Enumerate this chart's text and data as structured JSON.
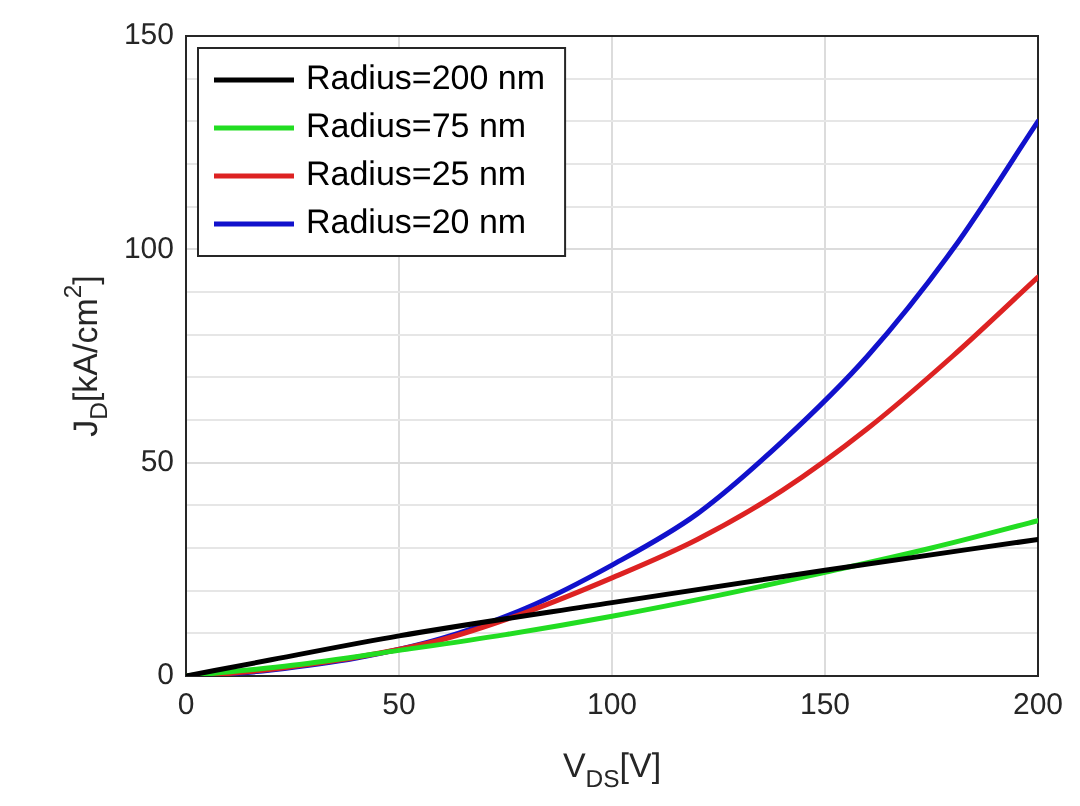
{
  "chart_data": {
    "type": "line",
    "xlabel": "V$_{DS}$[V]",
    "ylabel": "J$_{D}$[kA/cm$^{2}$]",
    "xlim": [
      0,
      200
    ],
    "xticks": [
      0,
      50,
      100,
      150,
      200
    ],
    "ylim": [
      0,
      150
    ],
    "yticks": [
      0,
      {
        "value": 10,
        "label": null
      },
      {
        "value": 20,
        "label": null
      },
      {
        "value": 30,
        "label": null
      },
      {
        "value": 40,
        "label": null
      },
      50,
      {
        "value": 60,
        "label": null
      },
      {
        "value": 70,
        "label": null
      },
      {
        "value": 80,
        "label": null
      },
      {
        "value": 90,
        "label": null
      },
      100,
      {
        "value": 110,
        "label": null
      },
      {
        "value": 120,
        "label": null
      },
      {
        "value": 130,
        "label": null
      },
      {
        "value": 140,
        "label": null
      },
      150
    ],
    "grid": true,
    "legend": "top left",
    "marker": "none",
    "line_style": "solid",
    "series": [
      {
        "name": "Radius=200 nm",
        "color": "#000000",
        "x": [
          0,
          20,
          50,
          100,
          150,
          200
        ],
        "values": [
          0,
          3.8,
          9.4,
          17.2,
          24.8,
          32
        ]
      },
      {
        "name": "Radius=75 nm",
        "color": "#22dd22",
        "x": [
          0,
          25,
          50,
          75,
          100,
          125,
          150,
          175,
          200
        ],
        "values": [
          0,
          2.5,
          6,
          9.7,
          14,
          18.9,
          24.3,
          30,
          36.4
        ]
      },
      {
        "name": "Radius=25 nm",
        "color": "#dd2222",
        "x": [
          0,
          10,
          20,
          40,
          60,
          80,
          100,
          120,
          140,
          160,
          180,
          200
        ],
        "values": [
          0,
          0.6,
          1.6,
          4.4,
          8.5,
          15,
          23,
          32,
          43.5,
          58,
          75,
          93.5
        ]
      },
      {
        "name": "Radius=20 nm",
        "color": "#1111cc",
        "x": [
          0,
          10,
          20,
          40,
          60,
          80,
          100,
          120,
          140,
          160,
          180,
          200
        ],
        "values": [
          0,
          0.5,
          1.4,
          4.2,
          8.8,
          16,
          26,
          38,
          55,
          75,
          100,
          130
        ]
      }
    ]
  }
}
